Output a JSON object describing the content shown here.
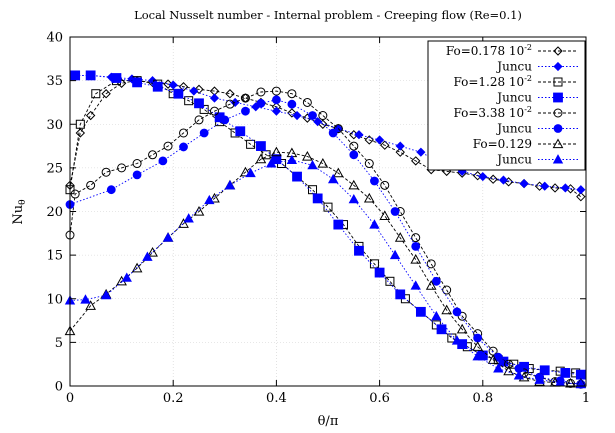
{
  "chart_data": {
    "type": "line",
    "title": "Local Nusselt number - Internal problem - Creeping flow (Re=0.1)",
    "xlabel": "θ/π",
    "ylabel_base": "Nu",
    "ylabel_sub": "θ",
    "xlim": [
      0,
      1
    ],
    "ylim": [
      0,
      40
    ],
    "xticks": [
      "0",
      "0.2",
      "0.4",
      "0.6",
      "0.8",
      "1"
    ],
    "yticks": [
      "0",
      "5",
      "10",
      "15",
      "20",
      "25",
      "30",
      "35",
      "40"
    ],
    "legend_position": "top-right",
    "grid": true,
    "series": [
      {
        "name_base": "Fo=0.178 10",
        "name_sup": "-2",
        "marker": "diamond-open",
        "color": "#000000",
        "x": [
          0,
          0.02,
          0.04,
          0.07,
          0.1,
          0.13,
          0.16,
          0.19,
          0.22,
          0.25,
          0.28,
          0.31,
          0.34,
          0.37,
          0.4,
          0.43,
          0.46,
          0.49,
          0.52,
          0.55,
          0.58,
          0.61,
          0.64,
          0.67,
          0.7,
          0.73,
          0.76,
          0.79,
          0.82,
          0.85,
          0.88,
          0.91,
          0.94,
          0.97,
          0.99
        ],
        "y": [
          23,
          29,
          31,
          33.5,
          34.7,
          35,
          34.8,
          34.6,
          34.3,
          34,
          33.8,
          33.5,
          33,
          32.5,
          32,
          31.3,
          30.7,
          30,
          29.5,
          28.8,
          28.2,
          27.6,
          26.8,
          25.8,
          24.8,
          24.6,
          24.4,
          24.1,
          23.7,
          23.4,
          23.2,
          22.9,
          22.7,
          22.6,
          21.7
        ]
      },
      {
        "name_base": "Juncu",
        "name_sup": "",
        "marker": "diamond-filled",
        "color": "#0000ff",
        "x": [
          0.01,
          0.04,
          0.08,
          0.12,
          0.16,
          0.2,
          0.24,
          0.28,
          0.32,
          0.36,
          0.4,
          0.44,
          0.48,
          0.52,
          0.56,
          0.6,
          0.64,
          0.68,
          0.72,
          0.76,
          0.8,
          0.84,
          0.88,
          0.92,
          0.96,
          0.99
        ],
        "y": [
          35.6,
          35.6,
          35.4,
          35.2,
          35,
          34.5,
          33.8,
          33,
          32.5,
          32,
          31.5,
          31,
          30.3,
          29.5,
          28.8,
          28.2,
          27.5,
          26.8,
          25.5,
          24.6,
          24,
          23.6,
          23.2,
          22.9,
          22.7,
          22.5
        ]
      },
      {
        "name_base": "Fo=1.28 10",
        "name_sup": "-2",
        "marker": "square-open",
        "color": "#000000",
        "x": [
          0,
          0.02,
          0.05,
          0.09,
          0.13,
          0.17,
          0.2,
          0.23,
          0.26,
          0.29,
          0.32,
          0.35,
          0.38,
          0.41,
          0.44,
          0.47,
          0.5,
          0.53,
          0.56,
          0.59,
          0.62,
          0.65,
          0.68,
          0.71,
          0.74,
          0.77,
          0.8,
          0.83,
          0.86,
          0.89,
          0.92,
          0.95,
          0.98
        ],
        "y": [
          22.5,
          30,
          33.5,
          35,
          35,
          34.6,
          33.5,
          32.7,
          31.7,
          30.3,
          29,
          27.7,
          26.5,
          25.5,
          24,
          22.5,
          20.5,
          18.5,
          16,
          14,
          12,
          10,
          8.5,
          7,
          5.5,
          4.5,
          3.5,
          3,
          2.5,
          2,
          1.8,
          1.7,
          1.5
        ]
      },
      {
        "name_base": "Juncu",
        "name_sup": "",
        "marker": "square-filled",
        "color": "#0000ff",
        "x": [
          0.01,
          0.04,
          0.09,
          0.13,
          0.17,
          0.21,
          0.25,
          0.29,
          0.33,
          0.37,
          0.4,
          0.44,
          0.48,
          0.52,
          0.56,
          0.6,
          0.64,
          0.68,
          0.72,
          0.76,
          0.8,
          0.84,
          0.88,
          0.92,
          0.96,
          0.99
        ],
        "y": [
          35.6,
          35.6,
          35.3,
          34.8,
          34.3,
          33.5,
          32.4,
          30.8,
          29.2,
          27.5,
          26,
          24,
          21.5,
          18.5,
          15.5,
          13,
          10.5,
          8.5,
          6.5,
          4.8,
          3.5,
          2.8,
          2.2,
          1.8,
          1.5,
          1.3
        ]
      },
      {
        "name_base": "Fo=3.38 10",
        "name_sup": "-2",
        "marker": "circle-open",
        "color": "#000000",
        "x": [
          0,
          0.01,
          0.04,
          0.07,
          0.1,
          0.13,
          0.16,
          0.19,
          0.22,
          0.25,
          0.28,
          0.31,
          0.34,
          0.37,
          0.4,
          0.43,
          0.46,
          0.49,
          0.52,
          0.55,
          0.58,
          0.61,
          0.64,
          0.67,
          0.7,
          0.73,
          0.76,
          0.79,
          0.82,
          0.85,
          0.88,
          0.91,
          0.94,
          0.97,
          0.99
        ],
        "y": [
          17.3,
          22,
          23,
          24.5,
          25,
          25.5,
          26.5,
          27.5,
          29,
          30.5,
          31.5,
          32.3,
          33,
          33.7,
          33.8,
          33.5,
          32.5,
          31,
          29.5,
          27.5,
          25.5,
          23,
          20,
          17,
          14,
          11,
          8,
          6,
          4,
          2.5,
          1.5,
          1,
          0.5,
          0.3,
          0.2
        ]
      },
      {
        "name_base": "Juncu",
        "name_sup": "",
        "marker": "circle-filled",
        "color": "#0000ff",
        "x": [
          0,
          0.08,
          0.13,
          0.18,
          0.22,
          0.26,
          0.3,
          0.34,
          0.37,
          0.4,
          0.43,
          0.47,
          0.51,
          0.55,
          0.59,
          0.63,
          0.67,
          0.71,
          0.75,
          0.79,
          0.83,
          0.87,
          0.91,
          0.95,
          0.99
        ],
        "y": [
          20.8,
          22.5,
          24.2,
          25.8,
          27.4,
          29,
          30.5,
          31.5,
          32.4,
          32.8,
          32.3,
          31,
          29,
          26.5,
          23.5,
          20,
          16,
          12,
          8.5,
          5.5,
          3.3,
          2,
          1,
          0.6,
          0.2
        ]
      },
      {
        "name_base": "Fo=0.129",
        "name_sup": "",
        "marker": "triangle-open",
        "color": "#000000",
        "x": [
          0,
          0.04,
          0.07,
          0.1,
          0.13,
          0.16,
          0.19,
          0.22,
          0.25,
          0.28,
          0.31,
          0.34,
          0.37,
          0.4,
          0.43,
          0.46,
          0.49,
          0.52,
          0.55,
          0.58,
          0.61,
          0.64,
          0.67,
          0.7,
          0.73,
          0.76,
          0.79,
          0.82,
          0.85,
          0.88,
          0.91,
          0.94,
          0.97,
          0.99
        ],
        "y": [
          6.3,
          9.2,
          10.5,
          12,
          13.5,
          15.3,
          17,
          18.6,
          20,
          21.5,
          23,
          24.5,
          26,
          26.8,
          26.7,
          26.3,
          25.5,
          24.4,
          23,
          21.5,
          19.5,
          17,
          14.5,
          11.5,
          8.7,
          6.5,
          4.5,
          3,
          1.7,
          1,
          0.5,
          0.4,
          0.3,
          0.3
        ]
      },
      {
        "name_base": "Juncu",
        "name_sup": "",
        "marker": "triangle-filled",
        "color": "#0000ff",
        "x": [
          0,
          0.03,
          0.07,
          0.11,
          0.15,
          0.19,
          0.23,
          0.27,
          0.31,
          0.35,
          0.39,
          0.43,
          0.47,
          0.51,
          0.55,
          0.59,
          0.63,
          0.67,
          0.71,
          0.75,
          0.79,
          0.83,
          0.87,
          0.91,
          0.95,
          0.99
        ],
        "y": [
          9.8,
          9.9,
          10.4,
          12.4,
          14.8,
          17,
          19.2,
          21.3,
          23,
          24.4,
          25.5,
          25.9,
          25.3,
          23.7,
          21.4,
          18.5,
          15,
          11.5,
          8,
          5.2,
          3.4,
          2,
          1.2,
          0.7,
          0.4,
          0.2
        ]
      }
    ]
  }
}
